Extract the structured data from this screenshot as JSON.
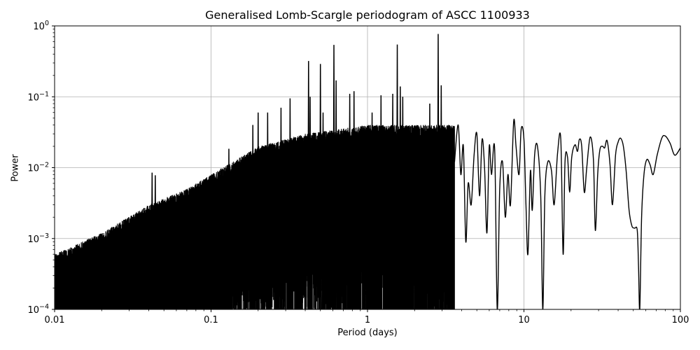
{
  "chart_data": {
    "type": "line",
    "title": "Generalised Lomb-Scargle periodogram of ASCC 1100933",
    "xlabel": "Period (days)",
    "ylabel": "Power",
    "xscale": "log",
    "yscale": "log",
    "xlim": [
      0.01,
      100
    ],
    "ylim": [
      0.0001,
      1
    ],
    "grid": true,
    "legend": null,
    "x_ticks": [
      {
        "value": 0.01,
        "label": "0.01"
      },
      {
        "value": 0.1,
        "label": "0.1"
      },
      {
        "value": 1,
        "label": "1"
      },
      {
        "value": 10,
        "label": "10"
      },
      {
        "value": 100,
        "label": "100"
      }
    ],
    "y_ticks": [
      {
        "value": 1,
        "base": "10",
        "exp": "0"
      },
      {
        "value": 0.1,
        "base": "10",
        "exp": "−1"
      },
      {
        "value": 0.01,
        "base": "10",
        "exp": "−2"
      },
      {
        "value": 0.001,
        "base": "10",
        "exp": "−3"
      },
      {
        "value": 0.0001,
        "base": "10",
        "exp": "−4"
      }
    ],
    "line_color": "#000000",
    "grid_color": "#b0b0b0",
    "noise_envelope": {
      "description": "dense periodogram forest; approximate upper envelope (period, power)",
      "points": [
        [
          0.01,
          0.0006
        ],
        [
          0.02,
          0.0012
        ],
        [
          0.04,
          0.003
        ],
        [
          0.07,
          0.005
        ],
        [
          0.1,
          0.008
        ],
        [
          0.2,
          0.02
        ],
        [
          0.4,
          0.03
        ],
        [
          1.0,
          0.04
        ],
        [
          3.0,
          0.04
        ]
      ]
    },
    "major_peaks": [
      {
        "period": 0.042,
        "power": 0.0085
      },
      {
        "period": 0.044,
        "power": 0.0078
      },
      {
        "period": 0.13,
        "power": 0.0185
      },
      {
        "period": 0.185,
        "power": 0.04
      },
      {
        "period": 0.2,
        "power": 0.06
      },
      {
        "period": 0.23,
        "power": 0.06
      },
      {
        "period": 0.28,
        "power": 0.07
      },
      {
        "period": 0.32,
        "power": 0.095
      },
      {
        "period": 0.42,
        "power": 0.32
      },
      {
        "period": 0.43,
        "power": 0.1
      },
      {
        "period": 0.5,
        "power": 0.29
      },
      {
        "period": 0.52,
        "power": 0.06
      },
      {
        "period": 0.61,
        "power": 0.54
      },
      {
        "period": 0.63,
        "power": 0.17
      },
      {
        "period": 0.77,
        "power": 0.11
      },
      {
        "period": 0.82,
        "power": 0.12
      },
      {
        "period": 1.07,
        "power": 0.06
      },
      {
        "period": 1.22,
        "power": 0.105
      },
      {
        "period": 1.45,
        "power": 0.11
      },
      {
        "period": 1.55,
        "power": 0.545
      },
      {
        "period": 1.62,
        "power": 0.14
      },
      {
        "period": 1.68,
        "power": 0.1
      },
      {
        "period": 2.5,
        "power": 0.08
      },
      {
        "period": 2.83,
        "power": 0.77
      },
      {
        "period": 2.96,
        "power": 0.145
      },
      {
        "period": 3.3,
        "power": 0.04
      }
    ],
    "smooth_tail": {
      "description": "resolved long-period curve (period days, power)",
      "points": [
        [
          3.6,
          0.012
        ],
        [
          3.8,
          0.04
        ],
        [
          3.95,
          0.008
        ],
        [
          4.1,
          0.02
        ],
        [
          4.25,
          0.0009
        ],
        [
          4.4,
          0.006
        ],
        [
          4.6,
          0.003
        ],
        [
          4.8,
          0.015
        ],
        [
          5.0,
          0.03
        ],
        [
          5.2,
          0.004
        ],
        [
          5.4,
          0.025
        ],
        [
          5.6,
          0.01
        ],
        [
          5.8,
          0.0012
        ],
        [
          6.0,
          0.02
        ],
        [
          6.2,
          0.008
        ],
        [
          6.5,
          0.018
        ],
        [
          6.75,
          0.0001
        ],
        [
          7.0,
          0.005
        ],
        [
          7.3,
          0.012
        ],
        [
          7.6,
          0.002
        ],
        [
          7.9,
          0.008
        ],
        [
          8.2,
          0.003
        ],
        [
          8.6,
          0.045
        ],
        [
          8.9,
          0.02
        ],
        [
          9.3,
          0.008
        ],
        [
          9.6,
          0.035
        ],
        [
          10.0,
          0.025
        ],
        [
          10.3,
          0.003
        ],
        [
          10.6,
          0.0006
        ],
        [
          11.0,
          0.009
        ],
        [
          11.3,
          0.0025
        ],
        [
          11.7,
          0.015
        ],
        [
          12.2,
          0.02
        ],
        [
          12.8,
          0.004
        ],
        [
          13.2,
          0.0001
        ],
        [
          13.6,
          0.004
        ],
        [
          14.2,
          0.012
        ],
        [
          15.0,
          0.009
        ],
        [
          15.6,
          0.003
        ],
        [
          16.4,
          0.016
        ],
        [
          17.2,
          0.025
        ],
        [
          17.8,
          0.0006
        ],
        [
          18.3,
          0.012
        ],
        [
          19.0,
          0.014
        ],
        [
          19.6,
          0.0045
        ],
        [
          20.2,
          0.014
        ],
        [
          21.2,
          0.021
        ],
        [
          22.0,
          0.017
        ],
        [
          22.6,
          0.025
        ],
        [
          23.4,
          0.02
        ],
        [
          24.3,
          0.0045
        ],
        [
          25.2,
          0.01
        ],
        [
          26.5,
          0.027
        ],
        [
          27.8,
          0.013
        ],
        [
          28.6,
          0.0013
        ],
        [
          29.6,
          0.008
        ],
        [
          30.6,
          0.018
        ],
        [
          31.8,
          0.02
        ],
        [
          32.8,
          0.019
        ],
        [
          34.0,
          0.024
        ],
        [
          35.5,
          0.011
        ],
        [
          36.8,
          0.003
        ],
        [
          38.5,
          0.015
        ],
        [
          40.0,
          0.023
        ],
        [
          41.5,
          0.026
        ],
        [
          43.2,
          0.02
        ],
        [
          45.0,
          0.009
        ],
        [
          47.0,
          0.0025
        ],
        [
          49.0,
          0.0015
        ],
        [
          51.0,
          0.0014
        ],
        [
          53.0,
          0.0013
        ],
        [
          54.0,
          0.0004
        ],
        [
          55.0,
          0.0001
        ],
        [
          56.5,
          0.002
        ],
        [
          58.5,
          0.008
        ],
        [
          61.0,
          0.013
        ],
        [
          64.0,
          0.011
        ],
        [
          67.0,
          0.008
        ],
        [
          71.0,
          0.015
        ],
        [
          76.0,
          0.026
        ],
        [
          80.0,
          0.028
        ],
        [
          86.0,
          0.022
        ],
        [
          92.0,
          0.015
        ],
        [
          100.0,
          0.019
        ]
      ]
    },
    "peak_period_days": 2.83,
    "peak_power": 0.77
  }
}
